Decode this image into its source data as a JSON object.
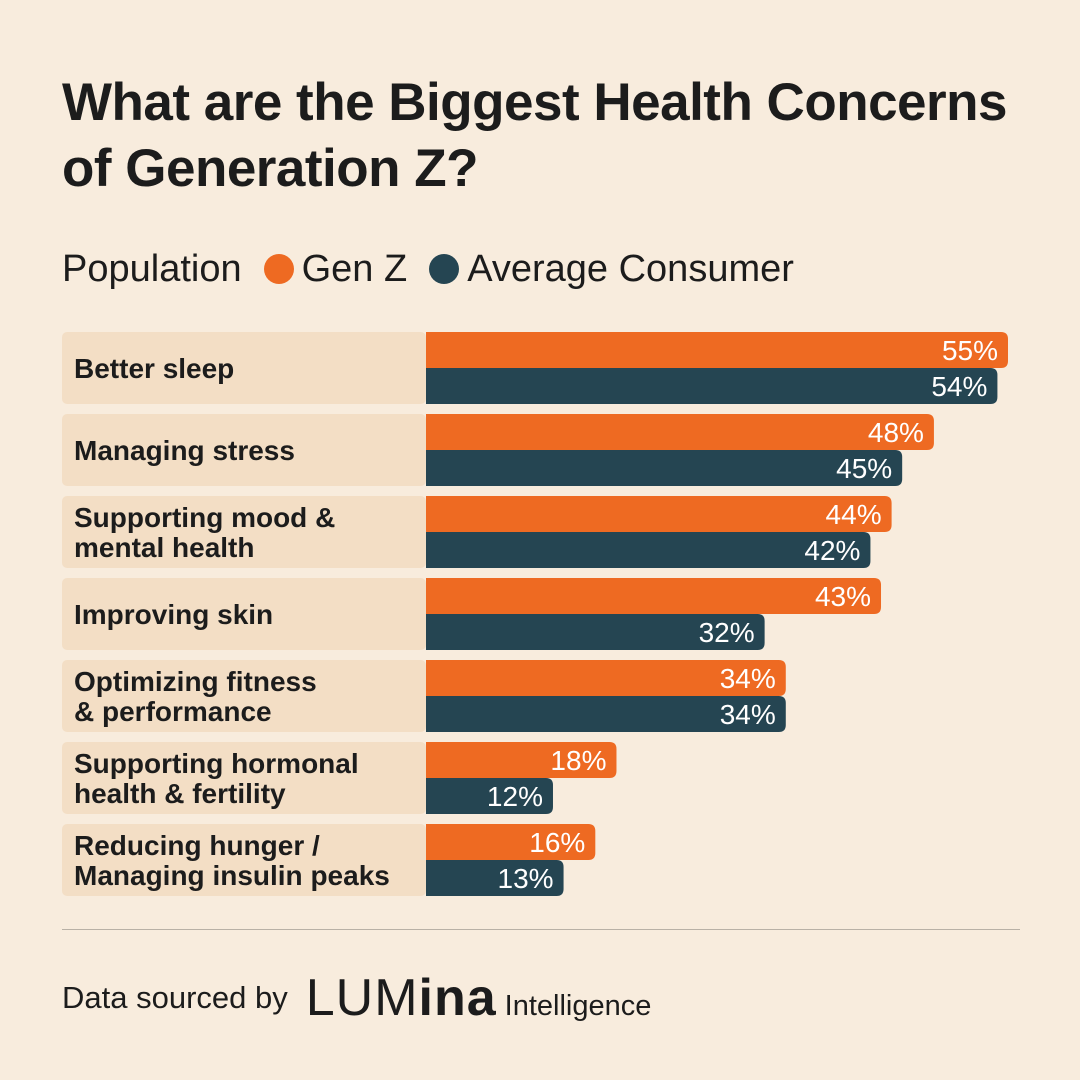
{
  "title": "What are the Biggest Health Concerns of Generation Z?",
  "legend": {
    "label": "Population",
    "items": [
      {
        "name": "Gen Z",
        "color": "#ee6a22"
      },
      {
        "name": "Average Consumer",
        "color": "#254552"
      }
    ]
  },
  "colors": {
    "background": "#f8ecdd",
    "row_band": "#f3dec5",
    "gen_z": "#ee6a22",
    "average": "#254552"
  },
  "chart_data": {
    "type": "bar",
    "orientation": "horizontal",
    "title": "What are the Biggest Health Concerns of Generation Z?",
    "categories": [
      [
        "Better sleep"
      ],
      [
        "Managing stress"
      ],
      [
        "Supporting mood &",
        "mental health"
      ],
      [
        "Improving skin"
      ],
      [
        "Optimizing fitness",
        "& performance"
      ],
      [
        "Supporting hormonal",
        "health & fertility"
      ],
      [
        "Reducing hunger /",
        "Managing insulin peaks"
      ]
    ],
    "series": [
      {
        "name": "Gen Z",
        "values": [
          55,
          48,
          44,
          43,
          34,
          18,
          16
        ],
        "labels": [
          "55%",
          "48%",
          "44%",
          "43%",
          "34%",
          "18%",
          "16%"
        ]
      },
      {
        "name": "Average Consumer",
        "values": [
          54,
          45,
          42,
          32,
          34,
          12,
          13
        ],
        "labels": [
          "54%",
          "45%",
          "42%",
          "32%",
          "34%",
          "12%",
          "13%"
        ]
      }
    ],
    "unit": "%",
    "xlim": [
      0,
      55
    ],
    "grid": false,
    "legend_position": "top-left"
  },
  "footer": {
    "source_text": "Data sourced by",
    "logo_light": "LUM",
    "logo_heavy": "ina",
    "logo_sub": "Intelligence"
  }
}
